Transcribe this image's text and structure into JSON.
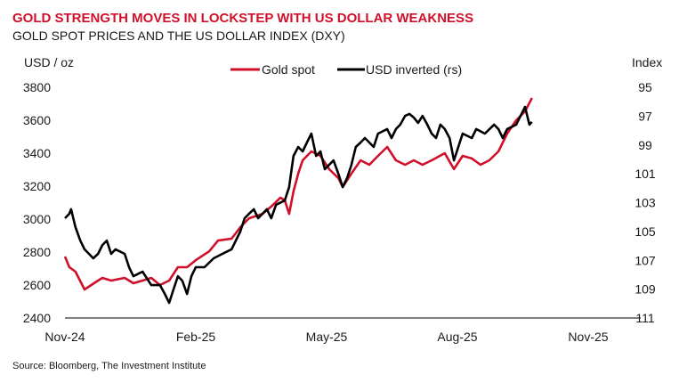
{
  "chart_data": {
    "type": "line",
    "title": "GOLD STRENGTH MOVES IN LOCKSTEP WITH US DOLLAR WEAKNESS",
    "subtitle": "GOLD SPOT PRICES AND THE US DOLLAR INDEX (DXY)",
    "ylabel": "USD / oz",
    "ylabel_right": "Index",
    "source": "Source: Bloomberg, The Investment Institute",
    "x_unit": "months since Nov-24",
    "xlim": [
      0,
      13.2
    ],
    "x_ticks": [
      {
        "m": 0,
        "label": "Nov-24"
      },
      {
        "m": 3,
        "label": "Feb-25"
      },
      {
        "m": 6,
        "label": "May-25"
      },
      {
        "m": 9,
        "label": "Aug-25"
      },
      {
        "m": 12,
        "label": "Nov-25"
      }
    ],
    "ylim": [
      2400,
      3800
    ],
    "y_ticks": [
      "2400",
      "2600",
      "2800",
      "3000",
      "3200",
      "3400",
      "3600",
      "3800"
    ],
    "ylim_right_inverted": [
      111,
      95
    ],
    "y_ticks_right": [
      "95",
      "97",
      "99",
      "101",
      "103",
      "105",
      "107",
      "109",
      "111"
    ],
    "legend_position": "top-center",
    "grid": false,
    "series": [
      {
        "name": "Gold spot",
        "axis": "left",
        "color": "#d0102a",
        "points": [
          [
            0,
            2773
          ],
          [
            0.1,
            2708
          ],
          [
            0.24,
            2681
          ],
          [
            0.45,
            2573
          ],
          [
            0.76,
            2627
          ],
          [
            0.86,
            2643
          ],
          [
            1.06,
            2627
          ],
          [
            1.37,
            2643
          ],
          [
            1.57,
            2611
          ],
          [
            1.78,
            2627
          ],
          [
            1.98,
            2643
          ],
          [
            2.18,
            2600
          ],
          [
            2.39,
            2627
          ],
          [
            2.59,
            2708
          ],
          [
            2.8,
            2708
          ],
          [
            3.0,
            2751
          ],
          [
            3.31,
            2805
          ],
          [
            3.51,
            2870
          ],
          [
            3.82,
            2881
          ],
          [
            4.02,
            2951
          ],
          [
            4.22,
            3005
          ],
          [
            4.53,
            3032
          ],
          [
            4.73,
            3076
          ],
          [
            4.94,
            3130
          ],
          [
            5.04,
            3114
          ],
          [
            5.14,
            3032
          ],
          [
            5.24,
            3168
          ],
          [
            5.35,
            3276
          ],
          [
            5.45,
            3357
          ],
          [
            5.65,
            3411
          ],
          [
            5.86,
            3384
          ],
          [
            6.06,
            3303
          ],
          [
            6.27,
            3249
          ],
          [
            6.37,
            3195
          ],
          [
            6.57,
            3276
          ],
          [
            6.78,
            3357
          ],
          [
            6.98,
            3330
          ],
          [
            7.18,
            3384
          ],
          [
            7.39,
            3438
          ],
          [
            7.59,
            3357
          ],
          [
            7.8,
            3330
          ],
          [
            8.0,
            3357
          ],
          [
            8.2,
            3330
          ],
          [
            8.41,
            3357
          ],
          [
            8.71,
            3400
          ],
          [
            8.92,
            3303
          ],
          [
            9.12,
            3384
          ],
          [
            9.33,
            3368
          ],
          [
            9.53,
            3330
          ],
          [
            9.73,
            3357
          ],
          [
            9.94,
            3411
          ],
          [
            10.14,
            3519
          ],
          [
            10.35,
            3600
          ],
          [
            10.55,
            3654
          ],
          [
            10.71,
            3735
          ]
        ]
      },
      {
        "name": "USD inverted (rs)",
        "axis": "right",
        "color": "#000000",
        "points": [
          [
            0,
            104.08
          ],
          [
            0.1,
            103.77
          ],
          [
            0.14,
            103.46
          ],
          [
            0.24,
            104.7
          ],
          [
            0.35,
            105.63
          ],
          [
            0.45,
            106.24
          ],
          [
            0.55,
            106.55
          ],
          [
            0.65,
            106.86
          ],
          [
            0.76,
            106.55
          ],
          [
            0.86,
            105.94
          ],
          [
            0.96,
            105.63
          ],
          [
            1.06,
            106.55
          ],
          [
            1.16,
            106.24
          ],
          [
            1.37,
            106.55
          ],
          [
            1.47,
            107.48
          ],
          [
            1.57,
            108.1
          ],
          [
            1.78,
            107.79
          ],
          [
            1.98,
            108.72
          ],
          [
            2.18,
            108.72
          ],
          [
            2.29,
            109.33
          ],
          [
            2.39,
            109.95
          ],
          [
            2.49,
            109.02
          ],
          [
            2.59,
            108.1
          ],
          [
            2.69,
            108.41
          ],
          [
            2.8,
            109.33
          ],
          [
            2.9,
            108.1
          ],
          [
            3.0,
            107.48
          ],
          [
            3.2,
            107.48
          ],
          [
            3.41,
            106.86
          ],
          [
            3.61,
            106.55
          ],
          [
            3.82,
            106.24
          ],
          [
            4.02,
            105.01
          ],
          [
            4.12,
            104.08
          ],
          [
            4.22,
            103.77
          ],
          [
            4.33,
            103.46
          ],
          [
            4.43,
            104.08
          ],
          [
            4.63,
            103.46
          ],
          [
            4.73,
            104.08
          ],
          [
            4.84,
            103.15
          ],
          [
            5.04,
            102.85
          ],
          [
            5.14,
            101.92
          ],
          [
            5.24,
            99.76
          ],
          [
            5.35,
            99.14
          ],
          [
            5.45,
            99.45
          ],
          [
            5.55,
            98.83
          ],
          [
            5.65,
            98.21
          ],
          [
            5.76,
            99.76
          ],
          [
            5.86,
            99.45
          ],
          [
            5.96,
            100.68
          ],
          [
            6.16,
            100.07
          ],
          [
            6.27,
            100.99
          ],
          [
            6.37,
            101.92
          ],
          [
            6.47,
            101.3
          ],
          [
            6.57,
            100.38
          ],
          [
            6.67,
            99.14
          ],
          [
            6.78,
            98.83
          ],
          [
            6.88,
            98.52
          ],
          [
            7.08,
            99.14
          ],
          [
            7.18,
            98.21
          ],
          [
            7.39,
            97.9
          ],
          [
            7.49,
            98.52
          ],
          [
            7.59,
            97.9
          ],
          [
            7.69,
            97.59
          ],
          [
            7.8,
            96.98
          ],
          [
            7.9,
            96.85
          ],
          [
            8.0,
            97.1
          ],
          [
            8.1,
            97.47
          ],
          [
            8.2,
            96.98
          ],
          [
            8.31,
            97.59
          ],
          [
            8.41,
            98.21
          ],
          [
            8.51,
            98.52
          ],
          [
            8.61,
            97.59
          ],
          [
            8.71,
            97.9
          ],
          [
            8.82,
            98.52
          ],
          [
            8.92,
            100.07
          ],
          [
            9.02,
            99.14
          ],
          [
            9.12,
            98.21
          ],
          [
            9.33,
            98.52
          ],
          [
            9.43,
            97.9
          ],
          [
            9.63,
            98.21
          ],
          [
            9.84,
            97.59
          ],
          [
            9.94,
            97.9
          ],
          [
            10.04,
            98.52
          ],
          [
            10.14,
            97.9
          ],
          [
            10.35,
            97.59
          ],
          [
            10.45,
            96.98
          ],
          [
            10.55,
            96.36
          ],
          [
            10.65,
            97.59
          ],
          [
            10.71,
            97.4
          ]
        ]
      }
    ]
  }
}
